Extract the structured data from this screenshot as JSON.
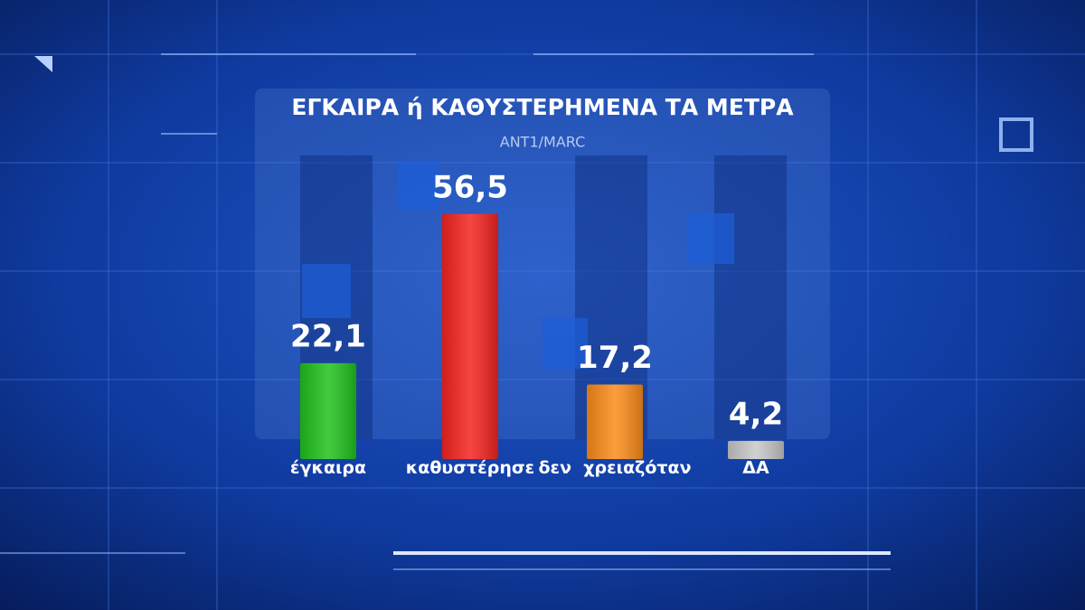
{
  "chart_data": {
    "type": "bar",
    "title": "ΕΓΚΑΙΡΑ ή ΚΑΘΥΣΤΕΡΗΜΕΝΑ ΤΑ ΜΕΤΡΑ",
    "subtitle": "ΑΝΤ1/MARC",
    "categories": [
      "έγκαιρα",
      "καθυστέρησε",
      "δεν  χρειαζόταν",
      "ΔΑ"
    ],
    "values": [
      22.1,
      56.5,
      17.2,
      4.2
    ],
    "value_labels": [
      "22,1",
      "56,5",
      "17,2",
      "4,2"
    ],
    "colors": [
      "#22c21e",
      "#f52420",
      "#fb8c1a",
      "#c8c8c8"
    ]
  }
}
